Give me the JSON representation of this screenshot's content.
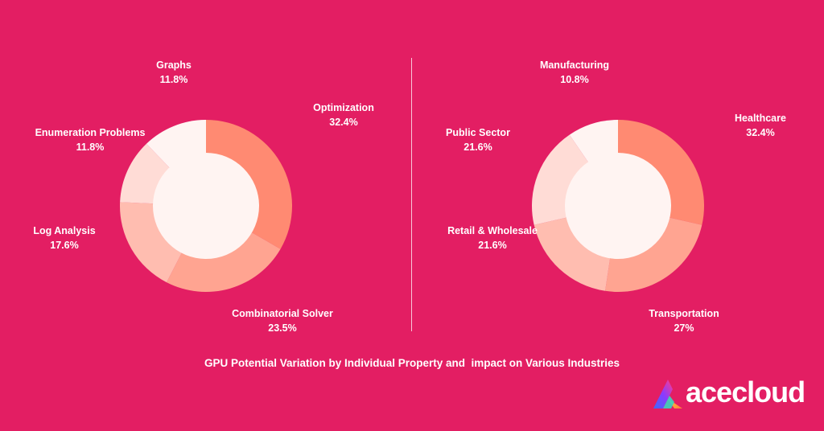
{
  "chart_data": [
    {
      "type": "pie",
      "variant": "donut",
      "title": "",
      "categories": [
        "Optimization",
        "Combinatorial Solver",
        "Log Analysis",
        "Enumeration Problems",
        "Graphs"
      ],
      "values": [
        32.4,
        23.5,
        17.6,
        11.8,
        11.8
      ],
      "value_labels": [
        "32.4%",
        "23.5%",
        "17.6%",
        "11.8%",
        "11.8%"
      ],
      "colors": [
        "#FF8A72",
        "#FFA491",
        "#FFBDB0",
        "#FFDCD6",
        "#FFF4F2"
      ]
    },
    {
      "type": "pie",
      "variant": "donut",
      "title": "",
      "categories": [
        "Healthcare",
        "Transportation",
        "Retail & Wholesale",
        "Public Sector",
        "Manufacturing"
      ],
      "values": [
        32.4,
        27,
        21.6,
        21.6,
        10.8
      ],
      "value_labels": [
        "32.4%",
        "27%",
        "21.6%",
        "21.6%",
        "10.8%"
      ],
      "colors": [
        "#FF8A72",
        "#FFA491",
        "#FFBDB0",
        "#FFDCD6",
        "#FFF4F2"
      ]
    }
  ],
  "caption": "GPU Potential Variation by Individual Property and  impact on Various Industries",
  "brand": {
    "name": "acecloud",
    "background": "#E31E63",
    "hole_color": "#FFF4F2"
  }
}
